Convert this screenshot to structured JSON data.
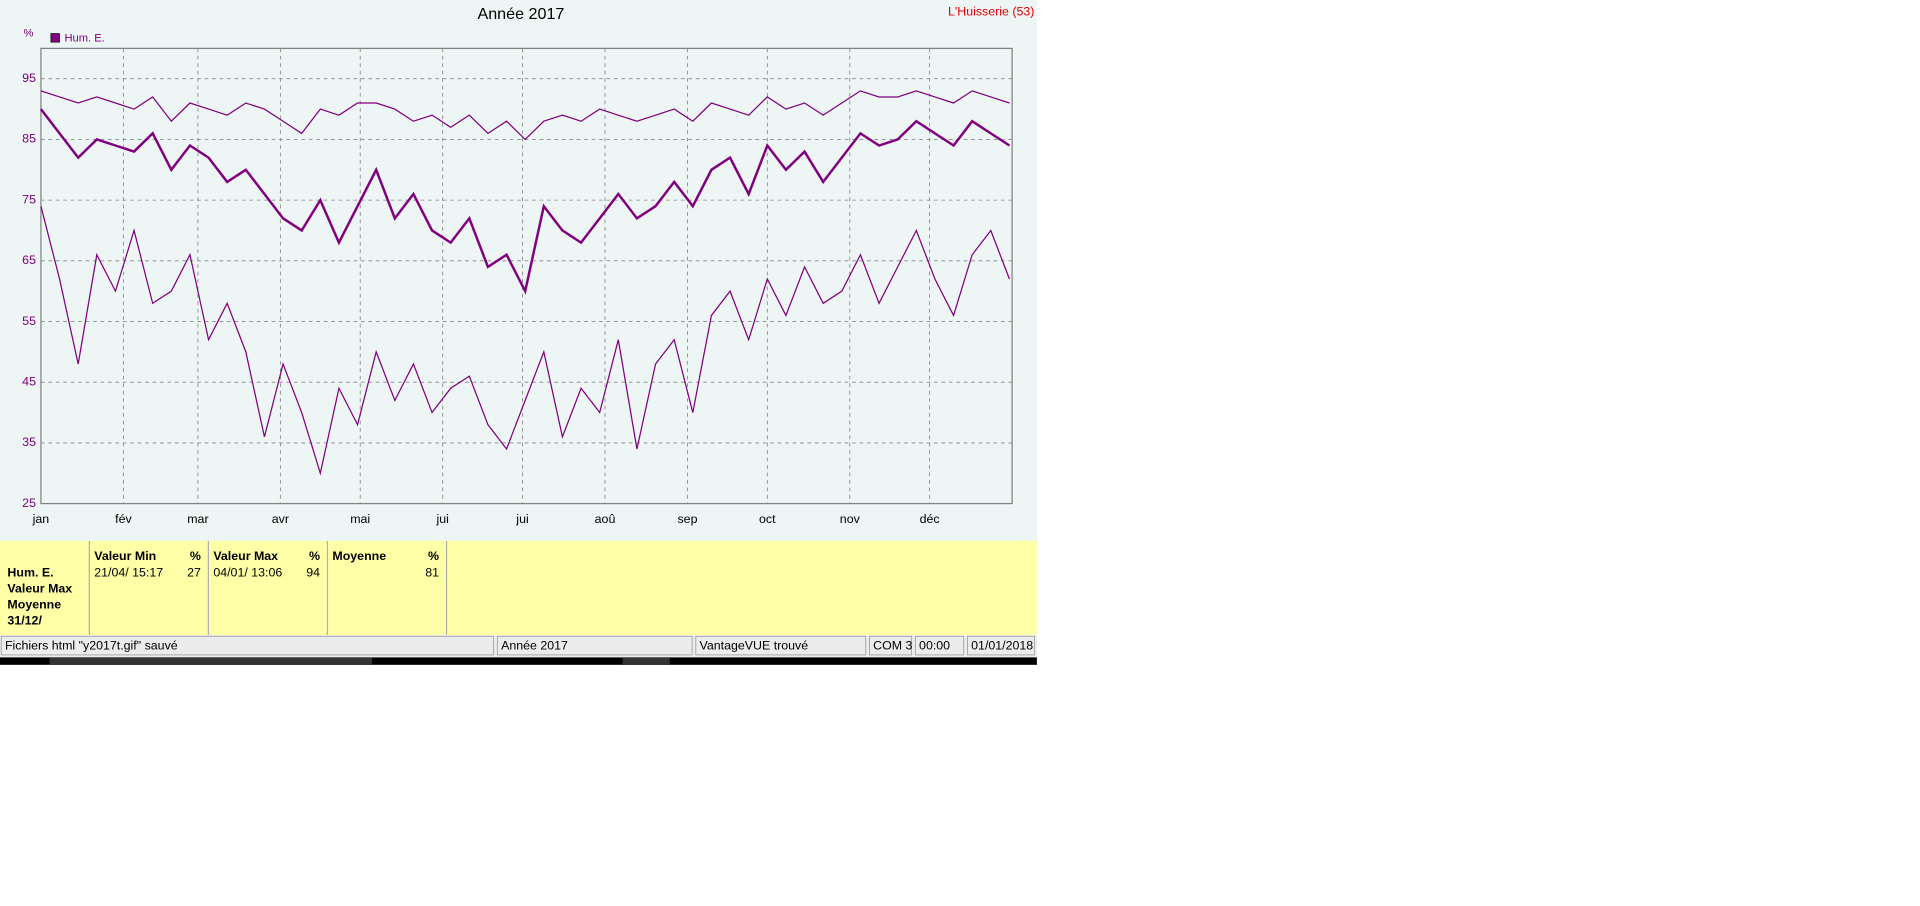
{
  "chart_data": {
    "type": "line",
    "title": "Année 2017",
    "station": "L'Huisserie (53)",
    "y_label": "%",
    "x": [
      1,
      8,
      15,
      22,
      29,
      36,
      43,
      50,
      57,
      64,
      71,
      78,
      85,
      92,
      99,
      106,
      113,
      120,
      127,
      134,
      141,
      148,
      155,
      162,
      169,
      176,
      183,
      190,
      197,
      204,
      211,
      218,
      225,
      232,
      239,
      246,
      253,
      260,
      267,
      274,
      281,
      288,
      295,
      302,
      309,
      316,
      323,
      330,
      337,
      344,
      351,
      358,
      365
    ],
    "xlim": [
      1,
      366
    ],
    "xticks": [
      {
        "value": 1,
        "label": "jan"
      },
      {
        "value": 32,
        "label": "fév"
      },
      {
        "value": 60,
        "label": "mar"
      },
      {
        "value": 91,
        "label": "avr"
      },
      {
        "value": 121,
        "label": "mai"
      },
      {
        "value": 152,
        "label": "jui"
      },
      {
        "value": 182,
        "label": "jui"
      },
      {
        "value": 213,
        "label": "aoû"
      },
      {
        "value": 244,
        "label": "sep"
      },
      {
        "value": 274,
        "label": "oct"
      },
      {
        "value": 305,
        "label": "nov"
      },
      {
        "value": 335,
        "label": "déc"
      }
    ],
    "ylim": [
      25,
      100
    ],
    "yticks": [
      25,
      35,
      45,
      55,
      65,
      75,
      85,
      95
    ],
    "grid": true,
    "series": [
      {
        "name": "Hum. E.",
        "color": "#800080",
        "line_width": 2,
        "values": [
          90,
          86,
          82,
          85,
          84,
          83,
          86,
          80,
          84,
          82,
          78,
          80,
          76,
          72,
          70,
          75,
          68,
          74,
          80,
          72,
          76,
          70,
          68,
          72,
          64,
          66,
          60,
          74,
          70,
          68,
          72,
          76,
          72,
          74,
          78,
          74,
          80,
          82,
          76,
          84,
          80,
          83,
          78,
          82,
          86,
          84,
          85,
          88,
          86,
          84,
          88,
          86,
          84
        ]
      },
      {
        "color": "#800080",
        "line_width": 1,
        "values": [
          93,
          92,
          91,
          92,
          91,
          90,
          92,
          88,
          91,
          90,
          89,
          91,
          90,
          88,
          86,
          90,
          89,
          91,
          91,
          90,
          88,
          89,
          87,
          89,
          86,
          88,
          85,
          88,
          89,
          88,
          90,
          89,
          88,
          89,
          90,
          88,
          91,
          90,
          89,
          92,
          90,
          91,
          89,
          91,
          93,
          92,
          92,
          93,
          92,
          91,
          93,
          92,
          91
        ]
      },
      {
        "color": "#800080",
        "line_width": 1,
        "values": [
          74,
          62,
          48,
          66,
          60,
          70,
          58,
          60,
          66,
          52,
          58,
          50,
          36,
          48,
          40,
          30,
          44,
          38,
          50,
          42,
          48,
          40,
          44,
          46,
          38,
          34,
          42,
          50,
          36,
          44,
          40,
          52,
          34,
          48,
          52,
          40,
          56,
          60,
          52,
          62,
          56,
          64,
          58,
          60,
          66,
          58,
          64,
          70,
          62,
          56,
          66,
          70,
          62
        ]
      }
    ]
  },
  "summary": {
    "row_labels": [
      "Hum. E.",
      "Valeur Max",
      "Moyenne",
      "31/12/"
    ],
    "columns": [
      {
        "title": "Valeur Min",
        "unit": "%",
        "date": "21/04/ 15:17",
        "value": "27"
      },
      {
        "title": "Valeur Max",
        "unit": "%",
        "date": "04/01/ 13:06",
        "value": "94"
      },
      {
        "title": "Moyenne",
        "unit": "%",
        "value": "81"
      }
    ]
  },
  "status_bar": [
    "Fichiers html  \"y2017t.gif\"  sauvé",
    "Année 2017",
    "VantageVUE trouvé",
    "COM 3",
    "00:00",
    "01/01/2018"
  ]
}
